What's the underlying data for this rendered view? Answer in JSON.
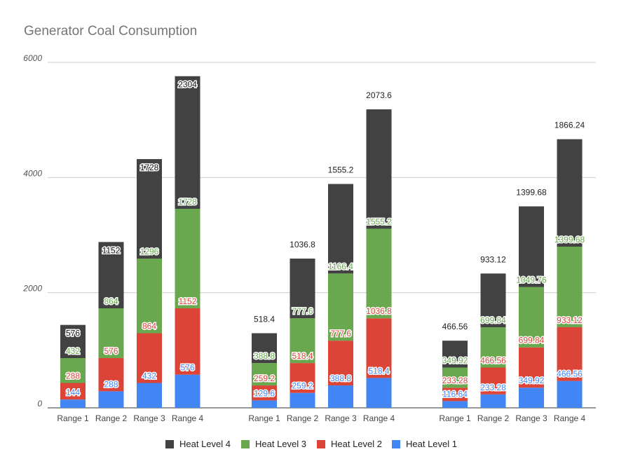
{
  "chart_data": {
    "type": "bar",
    "stacked": true,
    "title": "Generator Coal Consumption",
    "xlabel": "",
    "ylabel": "",
    "ylim": [
      0,
      6000
    ],
    "yticks": [
      "0",
      "2000",
      "4000",
      "6000"
    ],
    "grid": true,
    "legend_position": "bottom",
    "groups": [
      {
        "categories": [
          "Range 1",
          "Range 2",
          "Range 3",
          "Range 4"
        ],
        "series": [
          {
            "name": "Heat Level 1",
            "values": [
              144,
              288,
              432,
              576
            ],
            "labels": [
              "144",
              "288",
              "432",
              "576"
            ]
          },
          {
            "name": "Heat Level 2",
            "values": [
              288,
              576,
              864,
              1152
            ],
            "labels": [
              "288",
              "576",
              "864",
              "1152"
            ]
          },
          {
            "name": "Heat Level 3",
            "values": [
              432,
              864,
              1296,
              1728
            ],
            "labels": [
              "432",
              "864",
              "1296",
              "1728"
            ]
          },
          {
            "name": "Heat Level 4",
            "values": [
              576,
              1152,
              1728,
              2304
            ],
            "labels": [
              "576",
              "1152",
              "1728",
              "2304"
            ]
          }
        ]
      },
      {
        "categories": [
          "Range 1",
          "Range 2",
          "Range 3",
          "Range 4"
        ],
        "series": [
          {
            "name": "Heat Level 1",
            "values": [
              129.6,
              259.2,
              388.8,
              518.4
            ],
            "labels": [
              "129.6",
              "259.2",
              "388.8",
              "518.4"
            ]
          },
          {
            "name": "Heat Level 2",
            "values": [
              259.2,
              518.4,
              777.6,
              1036.8
            ],
            "labels": [
              "259.2",
              "518.4",
              "777.6",
              "1036.8"
            ]
          },
          {
            "name": "Heat Level 3",
            "values": [
              388.8,
              777.6,
              1166.4,
              1555.2
            ],
            "labels": [
              "388.8",
              "777.6",
              "1166.4",
              "1555.2"
            ]
          },
          {
            "name": "Heat Level 4",
            "values": [
              518.4,
              1036.8,
              1555.2,
              2073.6
            ],
            "labels": [
              "518.4",
              "1036.8",
              "1555.2",
              "2073.6"
            ]
          }
        ]
      },
      {
        "categories": [
          "Range 1",
          "Range 2",
          "Range 3",
          "Range 4"
        ],
        "series": [
          {
            "name": "Heat Level 1",
            "values": [
              116.64,
              233.28,
              349.92,
              466.56
            ],
            "labels": [
              "116.64",
              "233.28",
              "349.92",
              "466.56"
            ]
          },
          {
            "name": "Heat Level 2",
            "values": [
              233.28,
              466.56,
              699.84,
              933.12
            ],
            "labels": [
              "233.28",
              "466.56",
              "699.84",
              "933.12"
            ]
          },
          {
            "name": "Heat Level 3",
            "values": [
              349.92,
              699.84,
              1049.76,
              1399.68
            ],
            "labels": [
              "349.92",
              "699.84",
              "1049.76",
              "1399.68"
            ]
          },
          {
            "name": "Heat Level 4",
            "values": [
              466.56,
              933.12,
              1399.68,
              1866.24
            ],
            "labels": [
              "466.56",
              "933.12",
              "1399.68",
              "1866.24"
            ]
          }
        ]
      }
    ],
    "legend": [
      "Heat Level 4",
      "Heat Level 3",
      "Heat Level 2",
      "Heat Level 1"
    ],
    "colors": {
      "Heat Level 1": "#4285f4",
      "Heat Level 2": "#db4437",
      "Heat Level 3": "#6aa84f",
      "Heat Level 4": "#424242"
    },
    "label_colors": {
      "Heat Level 1": "#4285f4",
      "Heat Level 2": "#db4437",
      "Heat Level 3": "#6aa84f",
      "Heat Level 4": "#111111"
    }
  }
}
